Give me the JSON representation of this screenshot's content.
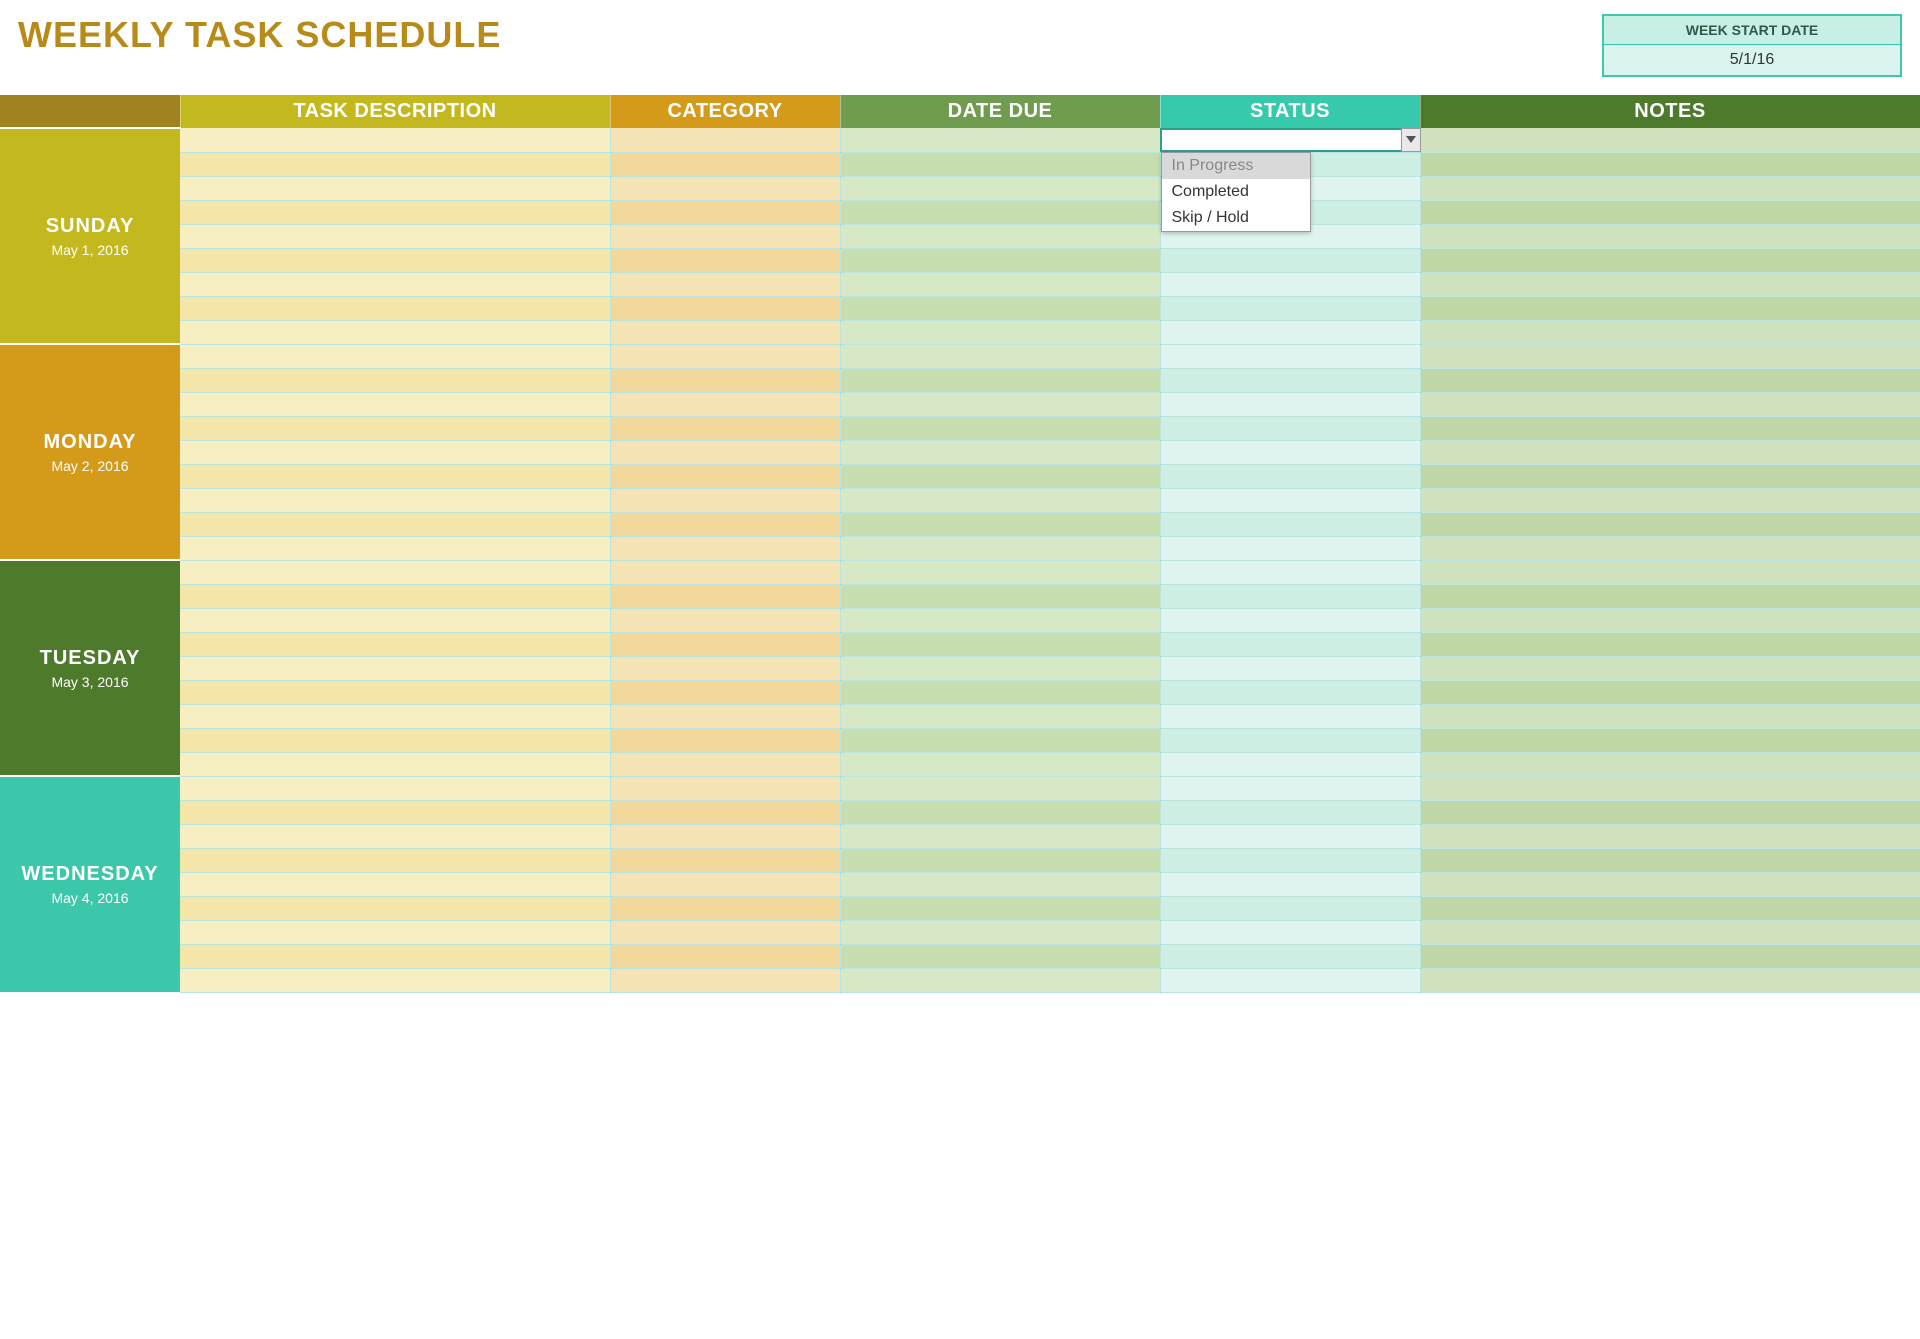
{
  "title": "WEEKLY TASK SCHEDULE",
  "week_start": {
    "label": "WEEK START DATE",
    "value": "5/1/16"
  },
  "columns": {
    "task": {
      "label": "TASK DESCRIPTION",
      "header_bg": "#c3b81d"
    },
    "category": {
      "label": "CATEGORY",
      "header_bg": "#d49b1a"
    },
    "date_due": {
      "label": "DATE DUE",
      "header_bg": "#6f9c4e"
    },
    "status": {
      "label": "STATUS",
      "header_bg": "#36c9ab"
    },
    "notes": {
      "label": "NOTES",
      "header_bg": "#4e7a2c"
    }
  },
  "corner_header_bg": "#a08221",
  "rows_per_day": 9,
  "row_colors": {
    "task": {
      "odd": "#f7efc1",
      "even": "#f3e6a8"
    },
    "category": {
      "odd": "#f6e3b5",
      "even": "#f2d89a"
    },
    "date_due": {
      "odd": "#d6e8c6",
      "even": "#c6ddb0"
    },
    "status": {
      "odd": "#dff4ee",
      "even": "#cceee3"
    },
    "notes": {
      "odd": "#cfe2bd",
      "even": "#bfd6a7"
    }
  },
  "days": [
    {
      "name": "SUNDAY",
      "date": "May 1, 2016",
      "bg": "#c3b81d"
    },
    {
      "name": "MONDAY",
      "date": "May 2, 2016",
      "bg": "#d49b1a"
    },
    {
      "name": "TUESDAY",
      "date": "May 3, 2016",
      "bg": "#4e7a2c"
    },
    {
      "name": "WEDNESDAY",
      "date": "May 4, 2016",
      "bg": "#3cc7ab"
    }
  ],
  "status_dropdown": {
    "options": [
      "In Progress",
      "Completed",
      "Skip / Hold"
    ],
    "selected_index": 0,
    "open_at": {
      "day_index": 0,
      "row_index": 0
    }
  }
}
